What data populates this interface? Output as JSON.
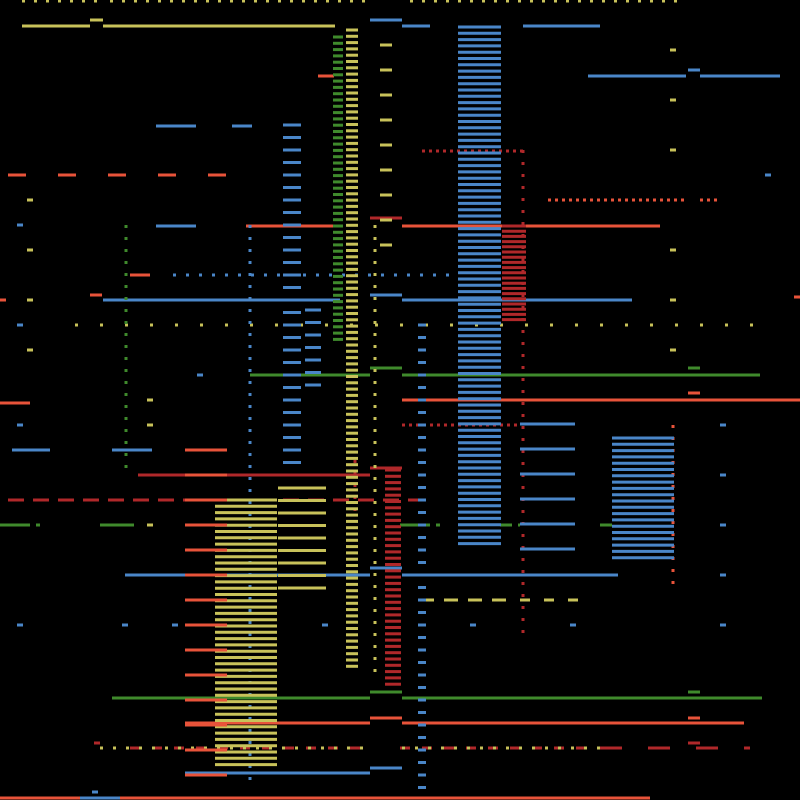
{
  "colors": {
    "background": "#000000",
    "yellow": "#c8c25a",
    "blue": "#4a86c8",
    "red": "#e8533a",
    "dark_red": "#b0282a",
    "green": "#3f8a2c"
  },
  "pattern_layers": [
    {
      "id": "blue-column",
      "color": "blue",
      "style": "stacked-bars"
    },
    {
      "id": "yellow-column",
      "color": "yellow",
      "style": "stacked-bars"
    },
    {
      "id": "red-column",
      "color": "red",
      "style": "stacked-bars"
    },
    {
      "id": "horizontal-lines",
      "color": "mixed",
      "style": "lines-and-dashes"
    },
    {
      "id": "dotted-lines",
      "color": "mixed",
      "style": "dotted"
    }
  ]
}
